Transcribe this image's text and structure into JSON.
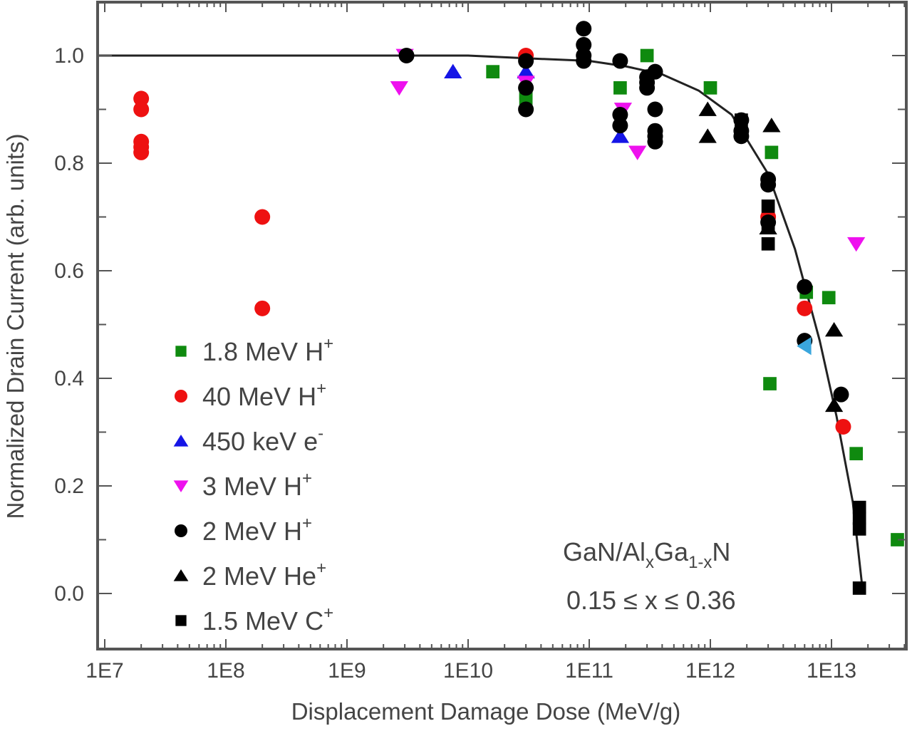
{
  "chart_data": {
    "type": "scatter",
    "title": "",
    "xlabel": "Displacement Damage Dose (MeV/g)",
    "ylabel": "Normalized Drain Current (arb. units)",
    "xscale": "log",
    "xlim": [
      8700000.0,
      42000000000000.0
    ],
    "ylim": [
      -0.103,
      1.1
    ],
    "x_ticks": [
      10000000.0,
      100000000.0,
      1000000000.0,
      10000000000.0,
      100000000000.0,
      1000000000000.0,
      10000000000000.0
    ],
    "x_tick_labels": [
      "1E7",
      "1E8",
      "1E9",
      "1E10",
      "1E11",
      "1E12",
      "1E13"
    ],
    "y_ticks": [
      0.0,
      0.2,
      0.4,
      0.6,
      0.8,
      1.0
    ],
    "y_tick_labels": [
      "0.0",
      "0.2",
      "0.4",
      "0.6",
      "0.8",
      "1.0"
    ],
    "grid": false,
    "legend_position": "lower-left inside",
    "annotations": [
      {
        "text_parts": [
          "GaN/Al",
          "x",
          "Ga",
          "1-x",
          "N"
        ],
        "x": 3000000000000.0,
        "y": 0.08
      },
      {
        "text": "0.15  ≤ x ≤ 0.36",
        "x": 3000000000000.0,
        "y": -0.01
      }
    ],
    "fit_curve": {
      "name": "fit",
      "color": "#222222",
      "x": [
        8700000.0,
        1000000000.0,
        10000000000.0,
        30000000000.0,
        100000000000.0,
        200000000000.0,
        400000000000.0,
        800000000000.0,
        1500000000000.0,
        3000000000000.0,
        5000000000000.0,
        8000000000000.0,
        11000000000000.0,
        15000000000000.0,
        18000000000000.0
      ],
      "y": [
        1.0,
        1.0,
        1.0,
        0.995,
        0.99,
        0.98,
        0.965,
        0.935,
        0.89,
        0.78,
        0.64,
        0.47,
        0.33,
        0.17,
        0.01
      ]
    },
    "series": [
      {
        "name": "1.8 MeV H+",
        "label_parts": [
          "1.8 MeV H",
          "+"
        ],
        "marker": "square",
        "color": "#0f8a0f",
        "points": [
          [
            16000000000.0,
            0.97
          ],
          [
            30000000000.0,
            0.93
          ],
          [
            30000000000.0,
            0.92
          ],
          [
            180000000000.0,
            0.94
          ],
          [
            300000000000.0,
            1.0
          ],
          [
            1000000000000.0,
            0.94
          ],
          [
            3200000000000.0,
            0.82
          ],
          [
            3100000000000.0,
            0.39
          ],
          [
            6200000000000.0,
            0.56
          ],
          [
            9500000000000.0,
            0.55
          ],
          [
            16000000000000.0,
            0.26
          ],
          [
            35000000000000.0,
            0.1
          ]
        ]
      },
      {
        "name": "40 MeV H+",
        "label_parts": [
          "40 MeV H",
          "+"
        ],
        "marker": "circle",
        "color": "#ee1111",
        "points": [
          [
            20000000.0,
            0.92
          ],
          [
            20000000.0,
            0.9
          ],
          [
            20000000.0,
            0.84
          ],
          [
            20000000.0,
            0.83
          ],
          [
            20000000.0,
            0.82
          ],
          [
            200000000.0,
            0.7
          ],
          [
            200000000.0,
            0.53
          ],
          [
            30000000000.0,
            1.0
          ],
          [
            6000000000000.0,
            0.53
          ],
          [
            12500000000000.0,
            0.31
          ],
          [
            3000000000000.0,
            0.7
          ]
        ]
      },
      {
        "name": "450 keV e-",
        "label_parts": [
          "450 keV e",
          "-"
        ],
        "marker": "triangle-up",
        "color": "#1515e6",
        "points": [
          [
            7500000000.0,
            0.97
          ],
          [
            30000000000.0,
            0.97
          ],
          [
            180000000000.0,
            0.85
          ]
        ]
      },
      {
        "name": "3 MeV H+",
        "label_parts": [
          "3 MeV H",
          "+"
        ],
        "marker": "triangle-down",
        "color": "#ee11ee",
        "points": [
          [
            2700000000.0,
            0.94
          ],
          [
            3000000000.0,
            1.0
          ],
          [
            30000000000.0,
            0.95
          ],
          [
            190000000000.0,
            0.9
          ],
          [
            250000000000.0,
            0.82
          ],
          [
            16000000000000.0,
            0.65
          ]
        ]
      },
      {
        "name": "2 MeV H+",
        "label_parts": [
          "2 MeV H",
          "+"
        ],
        "marker": "circle",
        "color": "#000000",
        "points": [
          [
            3100000000.0,
            1.0
          ],
          [
            30000000000.0,
            0.99
          ],
          [
            30000000000.0,
            0.94
          ],
          [
            30000000000.0,
            0.9
          ],
          [
            90000000000.0,
            1.05
          ],
          [
            90000000000.0,
            1.02
          ],
          [
            90000000000.0,
            1.0
          ],
          [
            90000000000.0,
            0.99
          ],
          [
            180000000000.0,
            0.99
          ],
          [
            180000000000.0,
            0.89
          ],
          [
            180000000000.0,
            0.87
          ],
          [
            300000000000.0,
            0.96
          ],
          [
            300000000000.0,
            0.95
          ],
          [
            300000000000.0,
            0.94
          ],
          [
            350000000000.0,
            0.97
          ],
          [
            350000000000.0,
            0.9
          ],
          [
            350000000000.0,
            0.86
          ],
          [
            350000000000.0,
            0.85
          ],
          [
            350000000000.0,
            0.84
          ],
          [
            1800000000000.0,
            0.88
          ],
          [
            1800000000000.0,
            0.86
          ],
          [
            1800000000000.0,
            0.85
          ],
          [
            3000000000000.0,
            0.77
          ],
          [
            3000000000000.0,
            0.76
          ],
          [
            3000000000000.0,
            0.69
          ],
          [
            6000000000000.0,
            0.57
          ],
          [
            6000000000000.0,
            0.47
          ],
          [
            12000000000000.0,
            0.37
          ]
        ]
      },
      {
        "name": "2 MeV He+",
        "label_parts": [
          "2 MeV He",
          "+"
        ],
        "marker": "triangle-up",
        "color": "#000000",
        "points": [
          [
            950000000000.0,
            0.9
          ],
          [
            950000000000.0,
            0.85
          ],
          [
            3200000000000.0,
            0.87
          ],
          [
            10500000000000.0,
            0.49
          ],
          [
            10500000000000.0,
            0.35
          ],
          [
            3000000000000.0,
            0.68
          ]
        ]
      },
      {
        "name": "1.5 MeV C+",
        "label_parts": [
          "1.5 MeV C",
          "+"
        ],
        "marker": "square",
        "color": "#000000",
        "points": [
          [
            1800000000000.0,
            0.88
          ],
          [
            3000000000000.0,
            0.72
          ],
          [
            3000000000000.0,
            0.68
          ],
          [
            3000000000000.0,
            0.65
          ],
          [
            17000000000000.0,
            0.16
          ],
          [
            17000000000000.0,
            0.14
          ],
          [
            17000000000000.0,
            0.12
          ],
          [
            17000000000000.0,
            0.01
          ]
        ]
      },
      {
        "name": "unlabeled (light blue)",
        "label_parts": null,
        "marker": "triangle-left",
        "color": "#3aa6dd",
        "points": [
          [
            6000000000000.0,
            0.46
          ]
        ]
      }
    ]
  }
}
